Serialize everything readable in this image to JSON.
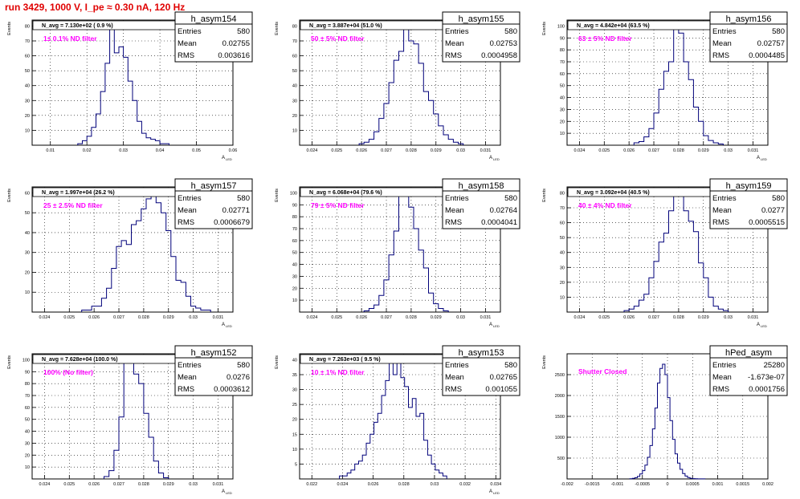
{
  "page": {
    "title": "run 3429,  1000 V, I_pe ≈ 0.30 nA, 120 Hz"
  },
  "chart_data": [
    {
      "type": "histogram",
      "name": "h_asym154",
      "stats": {
        "entries_label": "Entries",
        "entries": "580",
        "mean_label": "Mean",
        "mean": "0.02755",
        "rms_label": "RMS",
        "rms": "0.003616"
      },
      "navg": "N_avg = 7.130e+02 ( 0.9 %)",
      "filter": "1± 0.1% ND filter",
      "ylabel": "Events",
      "xlabel": "A",
      "xlabel_sub": "LED",
      "xlim": [
        0.005,
        0.06
      ],
      "ylim": [
        0,
        84
      ],
      "xticks": [
        0.01,
        0.02,
        0.03,
        0.04,
        0.05,
        0.06
      ],
      "xtick_labels": [
        "0.01",
        "0.02",
        "0.03",
        "0.04",
        "0.05",
        "0.06"
      ],
      "yticks": [
        10,
        20,
        30,
        40,
        50,
        60,
        70,
        80
      ],
      "ytick_labels": [
        "10",
        "20",
        "30",
        "40",
        "50",
        "60",
        "70",
        "80"
      ],
      "bin_low": 0.0175,
      "bin_width": 0.00125,
      "counts": [
        1,
        3,
        6,
        12,
        21,
        36,
        55,
        82,
        62,
        66,
        59,
        43,
        30,
        16,
        8,
        5,
        4,
        3,
        1,
        1
      ]
    },
    {
      "type": "histogram",
      "name": "h_asym155",
      "stats": {
        "entries_label": "Entries",
        "entries": "580",
        "mean_label": "Mean",
        "mean": "0.02753",
        "rms_label": "RMS",
        "rms": "0.0004958"
      },
      "navg": "N_avg = 3.887e+04 (51.0 %)",
      "filter": "50 ± 5% ND filter",
      "ylabel": "Events",
      "xlabel": "A",
      "xlabel_sub": "LED",
      "xlim": [
        0.0235,
        0.0316
      ],
      "ylim": [
        0,
        84
      ],
      "xticks": [
        0.024,
        0.025,
        0.026,
        0.027,
        0.028,
        0.029,
        0.03,
        0.031
      ],
      "xtick_labels": [
        "0.024",
        "0.025",
        "0.026",
        "0.027",
        "0.028",
        "0.029",
        "0.03",
        "0.031"
      ],
      "yticks": [
        10,
        20,
        30,
        40,
        50,
        60,
        70,
        80
      ],
      "ytick_labels": [
        "10",
        "20",
        "30",
        "40",
        "50",
        "60",
        "70",
        "80"
      ],
      "bin_low": 0.0259,
      "bin_width": 0.0002,
      "counts": [
        1,
        2,
        4,
        9,
        18,
        28,
        42,
        57,
        63,
        80,
        70,
        68,
        55,
        36,
        30,
        21,
        13,
        7,
        4,
        2,
        1
      ]
    },
    {
      "type": "histogram",
      "name": "h_asym156",
      "stats": {
        "entries_label": "Entries",
        "entries": "580",
        "mean_label": "Mean",
        "mean": "0.02757",
        "rms_label": "RMS",
        "rms": "0.0004485"
      },
      "navg": "N_avg = 4.842e+04 (63.5 %)",
      "filter": "63 ± 5% ND filter",
      "ylabel": "Events",
      "xlabel": "A",
      "xlabel_sub": "LED",
      "xlim": [
        0.0235,
        0.0316
      ],
      "ylim": [
        0,
        105
      ],
      "xticks": [
        0.024,
        0.025,
        0.026,
        0.027,
        0.028,
        0.029,
        0.03,
        0.031
      ],
      "xtick_labels": [
        "0.024",
        "0.025",
        "0.026",
        "0.027",
        "0.028",
        "0.029",
        "0.03",
        "0.031"
      ],
      "yticks": [
        10,
        20,
        30,
        40,
        50,
        60,
        70,
        80,
        90,
        100
      ],
      "ytick_labels": [
        "10",
        "20",
        "30",
        "40",
        "50",
        "60",
        "70",
        "80",
        "90",
        "100"
      ],
      "bin_low": 0.0262,
      "bin_width": 0.0002,
      "counts": [
        2,
        3,
        7,
        14,
        27,
        47,
        62,
        70,
        100,
        94,
        70,
        55,
        32,
        20,
        8,
        4,
        2,
        1
      ]
    },
    {
      "type": "histogram",
      "name": "h_asym157",
      "stats": {
        "entries_label": "Entries",
        "entries": "580",
        "mean_label": "Mean",
        "mean": "0.02771",
        "rms_label": "RMS",
        "rms": "0.0006679"
      },
      "navg": "N_avg = 1.997e+04 (26.2 %)",
      "filter": "25 ± 2.5% ND filter",
      "ylabel": "Events",
      "xlabel": "A",
      "xlabel_sub": "LED",
      "xlim": [
        0.0235,
        0.0316
      ],
      "ylim": [
        0,
        63
      ],
      "xticks": [
        0.024,
        0.025,
        0.026,
        0.027,
        0.028,
        0.029,
        0.03,
        0.031
      ],
      "xtick_labels": [
        "0.024",
        "0.025",
        "0.026",
        "0.027",
        "0.028",
        "0.029",
        "0.03",
        "0.031"
      ],
      "yticks": [
        10,
        20,
        30,
        40,
        50,
        60
      ],
      "ytick_labels": [
        "10",
        "20",
        "30",
        "40",
        "50",
        "60"
      ],
      "bin_low": 0.0255,
      "bin_width": 0.0002,
      "counts": [
        1,
        1,
        3,
        3,
        7,
        12,
        22,
        33,
        36,
        34,
        44,
        46,
        52,
        57,
        59,
        55,
        50,
        41,
        28,
        16,
        15,
        8,
        3,
        2,
        1,
        1
      ]
    },
    {
      "type": "histogram",
      "name": "h_asym158",
      "stats": {
        "entries_label": "Entries",
        "entries": "580",
        "mean_label": "Mean",
        "mean": "0.02764",
        "rms_label": "RMS",
        "rms": "0.0004041"
      },
      "navg": "N_avg = 6.068e+04 (79.6 %)",
      "filter": "79 ± 5% ND filter",
      "ylabel": "Events",
      "xlabel": "A",
      "xlabel_sub": "LED",
      "xlim": [
        0.0235,
        0.0316
      ],
      "ylim": [
        0,
        105
      ],
      "xticks": [
        0.024,
        0.025,
        0.026,
        0.027,
        0.028,
        0.029,
        0.03,
        0.031
      ],
      "xtick_labels": [
        "0.024",
        "0.025",
        "0.026",
        "0.027",
        "0.028",
        "0.029",
        "0.03",
        "0.031"
      ],
      "yticks": [
        10,
        20,
        30,
        40,
        50,
        60,
        70,
        80,
        90,
        100
      ],
      "ytick_labels": [
        "10",
        "20",
        "30",
        "40",
        "50",
        "60",
        "70",
        "80",
        "90",
        "100"
      ],
      "bin_low": 0.0261,
      "bin_width": 0.0002,
      "counts": [
        1,
        3,
        6,
        14,
        27,
        48,
        68,
        98,
        102,
        88,
        70,
        52,
        37,
        16,
        7,
        3,
        1
      ]
    },
    {
      "type": "histogram",
      "name": "h_asym159",
      "stats": {
        "entries_label": "Entries",
        "entries": "580",
        "mean_label": "Mean",
        "mean": "0.0277",
        "rms_label": "RMS",
        "rms": "0.0005515"
      },
      "navg": "N_avg = 3.092e+04 (40.5 %)",
      "filter": "40 ± 4% ND filter",
      "ylabel": "Events",
      "xlabel": "A",
      "xlabel_sub": "LED",
      "xlim": [
        0.0235,
        0.0316
      ],
      "ylim": [
        0,
        84
      ],
      "xticks": [
        0.024,
        0.025,
        0.026,
        0.027,
        0.028,
        0.029,
        0.03,
        0.031
      ],
      "xtick_labels": [
        "0.024",
        "0.025",
        "0.026",
        "0.027",
        "0.028",
        "0.029",
        "0.03",
        "0.031"
      ],
      "yticks": [
        10,
        20,
        30,
        40,
        50,
        60,
        70,
        80
      ],
      "ytick_labels": [
        "10",
        "20",
        "30",
        "40",
        "50",
        "60",
        "70",
        "80"
      ],
      "bin_low": 0.0258,
      "bin_width": 0.0002,
      "counts": [
        1,
        2,
        4,
        8,
        12,
        23,
        34,
        47,
        53,
        68,
        78,
        80,
        68,
        61,
        54,
        33,
        23,
        10,
        4,
        2,
        1
      ]
    },
    {
      "type": "histogram",
      "name": "h_asym152",
      "stats": {
        "entries_label": "Entries",
        "entries": "580",
        "mean_label": "Mean",
        "mean": "0.0276",
        "rms_label": "RMS",
        "rms": "0.0003612"
      },
      "navg": "N_avg = 7.628e+04 (100.0 %)",
      "filter": "100% (No filter)",
      "ylabel": "Events",
      "xlabel": "A",
      "xlabel_sub": "LED",
      "xlim": [
        0.0235,
        0.0316
      ],
      "ylim": [
        0,
        105
      ],
      "xticks": [
        0.024,
        0.025,
        0.026,
        0.027,
        0.028,
        0.029,
        0.03,
        0.031
      ],
      "xtick_labels": [
        "0.024",
        "0.025",
        "0.026",
        "0.027",
        "0.028",
        "0.029",
        "0.03",
        "0.031"
      ],
      "yticks": [
        10,
        20,
        30,
        40,
        50,
        60,
        70,
        80,
        90,
        100
      ],
      "ytick_labels": [
        "10",
        "20",
        "30",
        "40",
        "50",
        "60",
        "70",
        "80",
        "90",
        "100"
      ],
      "bin_low": 0.0264,
      "bin_width": 0.0002,
      "counts": [
        2,
        7,
        24,
        52,
        104,
        98,
        88,
        80,
        55,
        35,
        15,
        5,
        1
      ]
    },
    {
      "type": "histogram",
      "name": "h_asym153",
      "stats": {
        "entries_label": "Entries",
        "entries": "580",
        "mean_label": "Mean",
        "mean": "0.02765",
        "rms_label": "RMS",
        "rms": "0.001055"
      },
      "navg": "N_avg = 7.263e+03 ( 9.5 %)",
      "filter": "10 ± 1% ND filter",
      "ylabel": "Events",
      "xlabel": "A",
      "xlabel_sub": "LED",
      "xlim": [
        0.0212,
        0.0343
      ],
      "ylim": [
        0,
        42
      ],
      "xticks": [
        0.022,
        0.024,
        0.026,
        0.028,
        0.03,
        0.032,
        0.034
      ],
      "xtick_labels": [
        "0.022",
        "0.024",
        "0.026",
        "0.028",
        "0.03",
        "0.032",
        "0.034"
      ],
      "yticks": [
        5,
        10,
        15,
        20,
        25,
        30,
        35,
        40
      ],
      "ytick_labels": [
        "5",
        "10",
        "15",
        "20",
        "25",
        "30",
        "35",
        "40"
      ],
      "bin_low": 0.0238,
      "bin_width": 0.00025,
      "counts": [
        1,
        1,
        2,
        3,
        5,
        6,
        8,
        12,
        15,
        19,
        22,
        28,
        33,
        40,
        35,
        40,
        34,
        31,
        24,
        27,
        21,
        22,
        13,
        8,
        5,
        3,
        2,
        1
      ]
    },
    {
      "type": "histogram",
      "name": "hPed_asym",
      "stats": {
        "entries_label": "Entries",
        "entries": "25280",
        "mean_label": "Mean",
        "mean": "-1.673e-07",
        "rms_label": "RMS",
        "rms": "0.0001756"
      },
      "navg": "",
      "filter": "Shutter Closed",
      "ylabel": "Events",
      "xlabel": "",
      "xlabel_sub": "",
      "xlim": [
        -0.002,
        0.002
      ],
      "ylim": [
        0,
        3000
      ],
      "xticks": [
        -0.002,
        -0.0015,
        -0.001,
        -0.0005,
        0,
        0.0005,
        0.001,
        0.0015,
        0.002
      ],
      "xtick_labels": [
        "-0.002",
        "-0.0015",
        "-0.001",
        "-0.0005",
        "0",
        "0.0005",
        "0.001",
        "0.0015",
        "0.002"
      ],
      "yticks": [
        500,
        1000,
        1500,
        2000,
        2500
      ],
      "ytick_labels": [
        "500",
        "1000",
        "1500",
        "2000",
        "2500"
      ],
      "bin_low": -0.00075,
      "bin_width": 5e-05,
      "counts": [
        5,
        15,
        30,
        60,
        120,
        200,
        330,
        520,
        800,
        1200,
        1700,
        2300,
        2650,
        2750,
        2500,
        1950,
        1400,
        950,
        600,
        380,
        230,
        130,
        70,
        35,
        15,
        8,
        3,
        1,
        1,
        1
      ]
    }
  ]
}
